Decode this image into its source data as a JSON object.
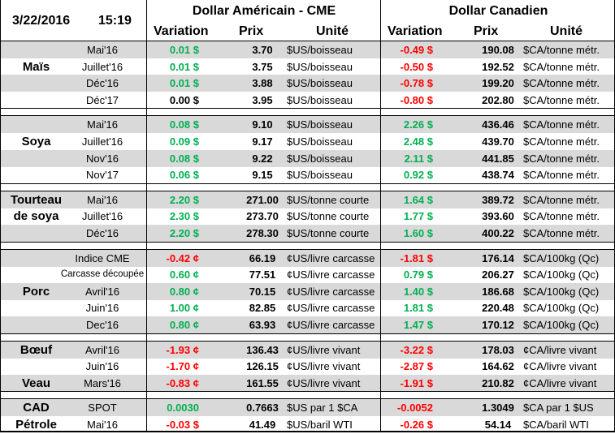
{
  "header": {
    "date": "3/22/2016",
    "time": "15:19",
    "us_title": "Dollar Américain - CME",
    "ca_title": "Dollar Canadien",
    "col_variation": "Variation",
    "col_prix": "Prix",
    "col_unite": "Unité"
  },
  "colors": {
    "positive": "#00b050",
    "negative": "#ff0000",
    "shade": "#d9d9d9"
  },
  "sections": [
    {
      "name": "mais",
      "rows": [
        {
          "label": "",
          "contract": "Mai'16",
          "us_var": "0.01 $",
          "us_sign": "pos",
          "us_price": "3.70",
          "us_unit": "$US/boisseau",
          "ca_var": "-0.49 $",
          "ca_sign": "neg",
          "ca_price": "190.08",
          "ca_unit": "$CA/tonne métr."
        },
        {
          "label": "Maïs",
          "contract": "Juillet'16",
          "us_var": "0.01 $",
          "us_sign": "pos",
          "us_price": "3.75",
          "us_unit": "$US/boisseau",
          "ca_var": "-0.50 $",
          "ca_sign": "neg",
          "ca_price": "192.52",
          "ca_unit": "$CA/tonne métr."
        },
        {
          "label": "",
          "contract": "Déc'16",
          "us_var": "0.01 $",
          "us_sign": "pos",
          "us_price": "3.88",
          "us_unit": "$US/boisseau",
          "ca_var": "-0.78 $",
          "ca_sign": "neg",
          "ca_price": "199.20",
          "ca_unit": "$CA/tonne métr."
        },
        {
          "label": "",
          "contract": "Déc'17",
          "us_var": "0.00 $",
          "us_sign": "zero",
          "us_price": "3.95",
          "us_unit": "$US/boisseau",
          "ca_var": "-0.80 $",
          "ca_sign": "neg",
          "ca_price": "202.80",
          "ca_unit": "$CA/tonne métr."
        }
      ]
    },
    {
      "name": "soya",
      "rows": [
        {
          "label": "",
          "contract": "Mai'16",
          "us_var": "0.08 $",
          "us_sign": "pos",
          "us_price": "9.10",
          "us_unit": "$US/boisseau",
          "ca_var": "2.26 $",
          "ca_sign": "pos",
          "ca_price": "436.46",
          "ca_unit": "$CA/tonne métr."
        },
        {
          "label": "Soya",
          "contract": "Juillet'16",
          "us_var": "0.09 $",
          "us_sign": "pos",
          "us_price": "9.17",
          "us_unit": "$US/boisseau",
          "ca_var": "2.48 $",
          "ca_sign": "pos",
          "ca_price": "439.70",
          "ca_unit": "$CA/tonne métr."
        },
        {
          "label": "",
          "contract": "Nov'16",
          "us_var": "0.08 $",
          "us_sign": "pos",
          "us_price": "9.22",
          "us_unit": "$US/boisseau",
          "ca_var": "2.11 $",
          "ca_sign": "pos",
          "ca_price": "441.85",
          "ca_unit": "$CA/tonne métr."
        },
        {
          "label": "",
          "contract": "Nov'17",
          "us_var": "0.06 $",
          "us_sign": "pos",
          "us_price": "9.15",
          "us_unit": "$US/boisseau",
          "ca_var": "0.92 $",
          "ca_sign": "pos",
          "ca_price": "438.74",
          "ca_unit": "$CA/tonne métr."
        }
      ]
    },
    {
      "name": "tourteau",
      "rows": [
        {
          "label": "Tourteau",
          "contract": "Mai'16",
          "us_var": "2.20 $",
          "us_sign": "pos",
          "us_price": "271.00",
          "us_unit": "$US/tonne courte",
          "ca_var": "1.64 $",
          "ca_sign": "pos",
          "ca_price": "389.72",
          "ca_unit": "$CA/tonne métr."
        },
        {
          "label": "de soya",
          "contract": "Juillet'16",
          "us_var": "2.30 $",
          "us_sign": "pos",
          "us_price": "273.70",
          "us_unit": "$US/tonne courte",
          "ca_var": "1.77 $",
          "ca_sign": "pos",
          "ca_price": "393.60",
          "ca_unit": "$CA/tonne métr."
        },
        {
          "label": "",
          "contract": "Déc'16",
          "us_var": "2.20 $",
          "us_sign": "pos",
          "us_price": "278.30",
          "us_unit": "$US/tonne courte",
          "ca_var": "1.60 $",
          "ca_sign": "pos",
          "ca_price": "400.22",
          "ca_unit": "$CA/tonne métr."
        }
      ]
    },
    {
      "name": "porc",
      "rows": [
        {
          "label": "",
          "contract": "Indice CME",
          "us_var": "-0.42 ¢",
          "us_sign": "neg",
          "us_price": "66.19",
          "us_unit": "¢US/livre carcasse",
          "ca_var": "-1.81 $",
          "ca_sign": "neg",
          "ca_price": "176.14",
          "ca_unit": "$CA/100kg (Qc)"
        },
        {
          "label": "",
          "contract": "Carcasse découpée",
          "us_var": "0.60 ¢",
          "us_sign": "pos",
          "us_price": "77.51",
          "us_unit": "¢US/livre carcasse",
          "ca_var": "0.79 $",
          "ca_sign": "pos",
          "ca_price": "206.27",
          "ca_unit": "$CA/100kg (Qc)"
        },
        {
          "label": "Porc",
          "contract": "Avril'16",
          "us_var": "0.80 ¢",
          "us_sign": "pos",
          "us_price": "70.15",
          "us_unit": "¢US/livre carcasse",
          "ca_var": "1.40 $",
          "ca_sign": "pos",
          "ca_price": "186.68",
          "ca_unit": "$CA/100kg (Qc)"
        },
        {
          "label": "",
          "contract": "Juin'16",
          "us_var": "1.00 ¢",
          "us_sign": "pos",
          "us_price": "82.85",
          "us_unit": "¢US/livre carcasse",
          "ca_var": "1.81 $",
          "ca_sign": "pos",
          "ca_price": "220.48",
          "ca_unit": "$CA/100kg (Qc)"
        },
        {
          "label": "",
          "contract": "Dec'16",
          "us_var": "0.80 ¢",
          "us_sign": "pos",
          "us_price": "63.93",
          "us_unit": "¢US/livre carcasse",
          "ca_var": "1.47 $",
          "ca_sign": "pos",
          "ca_price": "170.12",
          "ca_unit": "$CA/100kg (Qc)"
        }
      ]
    },
    {
      "name": "boeuf-veau",
      "rows": [
        {
          "label": "Bœuf",
          "contract": "Avril'16",
          "us_var": "-1.93 ¢",
          "us_sign": "neg",
          "us_price": "136.43",
          "us_unit": "¢US/livre vivant",
          "ca_var": "-3.22 $",
          "ca_sign": "neg",
          "ca_price": "178.03",
          "ca_unit": "¢CA/livre vivant"
        },
        {
          "label": "",
          "contract": "Juin'16",
          "us_var": "-1.70 ¢",
          "us_sign": "neg",
          "us_price": "126.15",
          "us_unit": "¢US/livre vivant",
          "ca_var": "-2.87 $",
          "ca_sign": "neg",
          "ca_price": "164.62",
          "ca_unit": "¢CA/livre vivant"
        },
        {
          "label": "Veau",
          "contract": "Mars'16",
          "us_var": "-0.83 ¢",
          "us_sign": "neg",
          "us_price": "161.55",
          "us_unit": "¢US/livre vivant",
          "ca_var": "-1.91 $",
          "ca_sign": "neg",
          "ca_price": "210.82",
          "ca_unit": "¢CA/livre vivant"
        }
      ]
    },
    {
      "name": "cad-petrole",
      "rows": [
        {
          "label": "CAD",
          "contract": "SPOT",
          "us_var": "0.0030",
          "us_sign": "pos",
          "us_price": "0.7663",
          "us_unit": "$US par 1 $CA",
          "ca_var": "-0.0052",
          "ca_sign": "neg",
          "ca_price": "1.3049",
          "ca_unit": "$CA par 1 $US"
        },
        {
          "label": "Pétrole",
          "contract": "Mai'16",
          "us_var": "-0.03 $",
          "us_sign": "neg",
          "us_price": "41.49",
          "us_unit": "$US/baril WTI",
          "ca_var": "-0.26 $",
          "ca_sign": "neg",
          "ca_price": "54.14",
          "ca_unit": "$CA/baril WTI"
        }
      ]
    }
  ]
}
